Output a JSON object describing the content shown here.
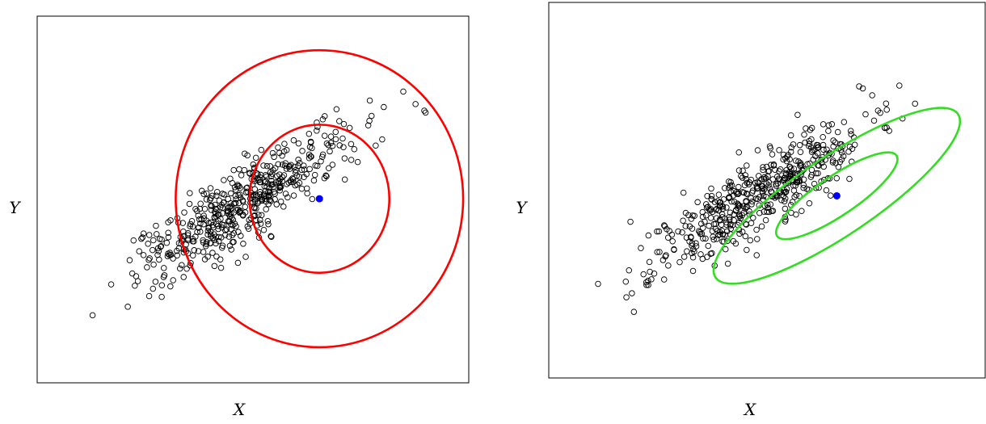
{
  "chart_data": [
    {
      "type": "scatter",
      "title": "",
      "xlabel": "X",
      "ylabel": "Y",
      "grid": false,
      "xlim": [
        0,
        1
      ],
      "ylim": [
        0,
        1
      ],
      "point_color": "#000000",
      "center": {
        "x": 0.654,
        "y": 0.502,
        "color": "#0000ff"
      },
      "contours": {
        "shape": "circle",
        "color": "#ff0000",
        "levels": [
          {
            "rx": 0.162,
            "ry": 0.202
          },
          {
            "rx": 0.333,
            "ry": 0.405
          }
        ]
      },
      "points": {
        "count": 500,
        "seed": 7,
        "mean": [
          0.48,
          0.49
        ],
        "principal_spread": 0.155,
        "minor_spread": 0.042,
        "angle_deg": 38
      }
    },
    {
      "type": "scatter",
      "title": "",
      "xlabel": "X",
      "ylabel": "Y",
      "grid": false,
      "xlim": [
        0,
        1
      ],
      "ylim": [
        0,
        1
      ],
      "point_color": "#000000",
      "center": {
        "x": 0.66,
        "y": 0.485,
        "color": "#0000ff"
      },
      "contours": {
        "shape": "ellipse",
        "color": "#33dd22",
        "angle_deg": 34,
        "levels": [
          {
            "a": 0.165,
            "b": 0.045
          },
          {
            "a": 0.335,
            "b": 0.09
          }
        ]
      },
      "points": {
        "count": 500,
        "seed": 11,
        "mean": [
          0.48,
          0.49
        ],
        "principal_spread": 0.155,
        "minor_spread": 0.042,
        "angle_deg": 38
      }
    }
  ]
}
